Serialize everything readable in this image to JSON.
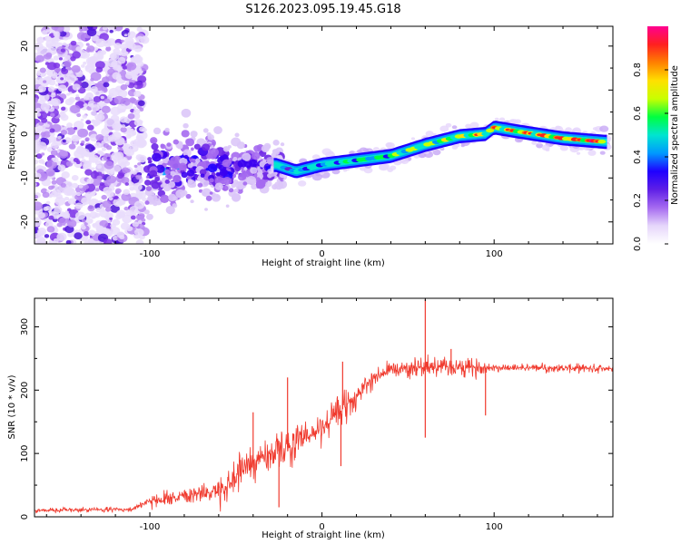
{
  "title": "S126.2023.095.19.45.G18",
  "colorbar_label": "Normalized spectral amplitude",
  "colorbar_ticks": [
    "0.0",
    "0.2",
    "0.4",
    "0.6",
    "0.8"
  ],
  "colors": {
    "snr_line": "#f03a2e",
    "speckle": "#8a3fe8",
    "colormap": [
      "#ffffff",
      "#e6d6fb",
      "#a56af0",
      "#5e1fe6",
      "#1f00ff",
      "#0099ff",
      "#00e5d0",
      "#00ff40",
      "#c8ff00",
      "#ffe000",
      "#ff8000",
      "#ff2020",
      "#ff0090"
    ]
  },
  "chart_data": [
    {
      "type": "heatmap",
      "panel": "top",
      "xlabel": "Height of straight line (km)",
      "ylabel": "Frequency (Hz)",
      "xlim": [
        -167,
        169
      ],
      "ylim": [
        -25,
        24.5
      ],
      "xticks": [
        -100,
        0,
        100
      ],
      "yticks": [
        -20,
        -10,
        0,
        10,
        20
      ],
      "colorbar_range": [
        0,
        1
      ],
      "ridge": [
        {
          "x": -100,
          "y": -9
        },
        {
          "x": -80,
          "y": -7
        },
        {
          "x": -60,
          "y": -8
        },
        {
          "x": -40,
          "y": -7.5
        },
        {
          "x": -27,
          "y": -7
        },
        {
          "x": -15,
          "y": -8.5
        },
        {
          "x": 0,
          "y": -7
        },
        {
          "x": 20,
          "y": -6
        },
        {
          "x": 40,
          "y": -5
        },
        {
          "x": 60,
          "y": -2.5
        },
        {
          "x": 80,
          "y": -0.5
        },
        {
          "x": 95,
          "y": 0
        },
        {
          "x": 100,
          "y": 1.5
        },
        {
          "x": 115,
          "y": 0.5
        },
        {
          "x": 140,
          "y": -1
        },
        {
          "x": 165,
          "y": -1.8
        }
      ]
    },
    {
      "type": "line",
      "panel": "bottom",
      "xlabel": "Height of straight line (km)",
      "ylabel": "SNR (10 * v/v)",
      "xlim": [
        -167,
        169
      ],
      "ylim": [
        0,
        345
      ],
      "xticks": [
        -100,
        0,
        100
      ],
      "yticks": [
        0,
        100,
        200,
        300
      ],
      "trend": [
        {
          "x": -167,
          "y": 10
        },
        {
          "x": -110,
          "y": 12
        },
        {
          "x": -100,
          "y": 25
        },
        {
          "x": -80,
          "y": 35
        },
        {
          "x": -60,
          "y": 40
        },
        {
          "x": -45,
          "y": 80
        },
        {
          "x": -30,
          "y": 100
        },
        {
          "x": -10,
          "y": 120
        },
        {
          "x": 0,
          "y": 140
        },
        {
          "x": 10,
          "y": 165
        },
        {
          "x": 20,
          "y": 190
        },
        {
          "x": 30,
          "y": 220
        },
        {
          "x": 40,
          "y": 232
        },
        {
          "x": 60,
          "y": 238
        },
        {
          "x": 80,
          "y": 235
        },
        {
          "x": 100,
          "y": 236
        },
        {
          "x": 130,
          "y": 235
        },
        {
          "x": 169,
          "y": 234
        }
      ],
      "spikes": [
        {
          "x": 60,
          "y": 343
        },
        {
          "x": 60,
          "y": 125
        },
        {
          "x": 75,
          "y": 265
        },
        {
          "x": 95,
          "y": 160
        },
        {
          "x": 12,
          "y": 245
        },
        {
          "x": 11,
          "y": 80
        },
        {
          "x": -40,
          "y": 165
        },
        {
          "x": -20,
          "y": 220
        },
        {
          "x": -25,
          "y": 15
        }
      ]
    }
  ]
}
